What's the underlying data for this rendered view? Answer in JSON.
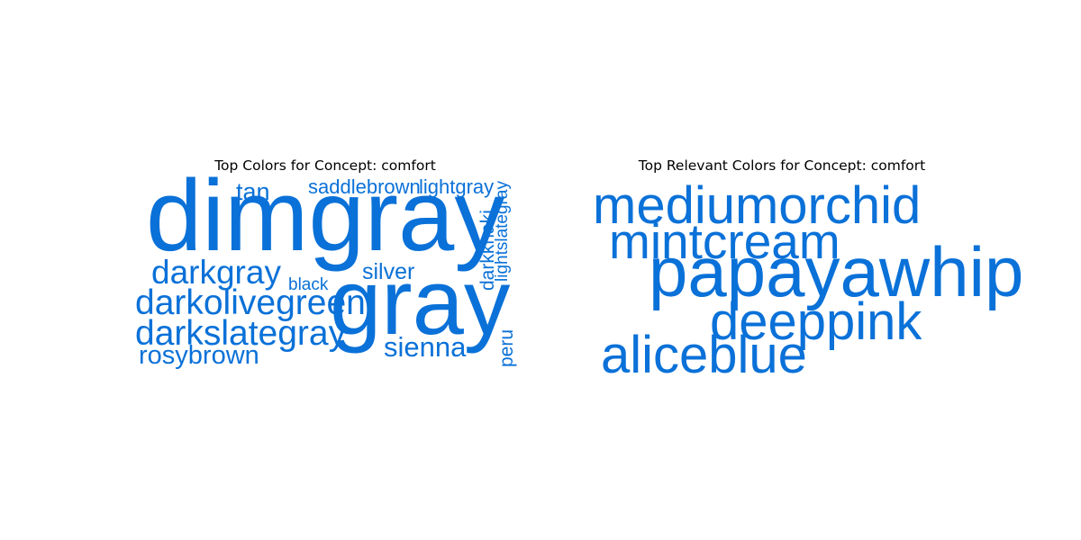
{
  "accent_color": "#0a71d8",
  "chart_data": [
    {
      "type": "wordcloud",
      "title": "Top Colors for Concept: comfort",
      "words": [
        {
          "text": "dimgray",
          "size": 1.0,
          "orientation": "horizontal"
        },
        {
          "text": "gray",
          "size": 0.92,
          "orientation": "horizontal"
        },
        {
          "text": "darkolivegreen",
          "size": 0.35,
          "orientation": "horizontal"
        },
        {
          "text": "darkslategray",
          "size": 0.35,
          "orientation": "horizontal"
        },
        {
          "text": "darkgray",
          "size": 0.33,
          "orientation": "horizontal"
        },
        {
          "text": "sienna",
          "size": 0.28,
          "orientation": "horizontal"
        },
        {
          "text": "rosybrown",
          "size": 0.26,
          "orientation": "horizontal"
        },
        {
          "text": "tan",
          "size": 0.24,
          "orientation": "horizontal"
        },
        {
          "text": "silver",
          "size": 0.22,
          "orientation": "horizontal"
        },
        {
          "text": "saddlebrown",
          "size": 0.2,
          "orientation": "horizontal"
        },
        {
          "text": "lightgray",
          "size": 0.2,
          "orientation": "horizontal"
        },
        {
          "text": "darkkhaki",
          "size": 0.19,
          "orientation": "vertical"
        },
        {
          "text": "peru",
          "size": 0.19,
          "orientation": "vertical"
        },
        {
          "text": "lightslategray",
          "size": 0.17,
          "orientation": "vertical"
        },
        {
          "text": "black",
          "size": 0.17,
          "orientation": "horizontal"
        }
      ]
    },
    {
      "type": "wordcloud",
      "title": "Top Relevant Colors for Concept: comfort",
      "words": [
        {
          "text": "papayawhip",
          "size": 1.0,
          "orientation": "horizontal"
        },
        {
          "text": "mediumorchid",
          "size": 0.74,
          "orientation": "horizontal"
        },
        {
          "text": "deeppink",
          "size": 0.74,
          "orientation": "horizontal"
        },
        {
          "text": "aliceblue",
          "size": 0.74,
          "orientation": "horizontal"
        },
        {
          "text": "mintcream",
          "size": 0.71,
          "orientation": "horizontal"
        }
      ]
    }
  ]
}
